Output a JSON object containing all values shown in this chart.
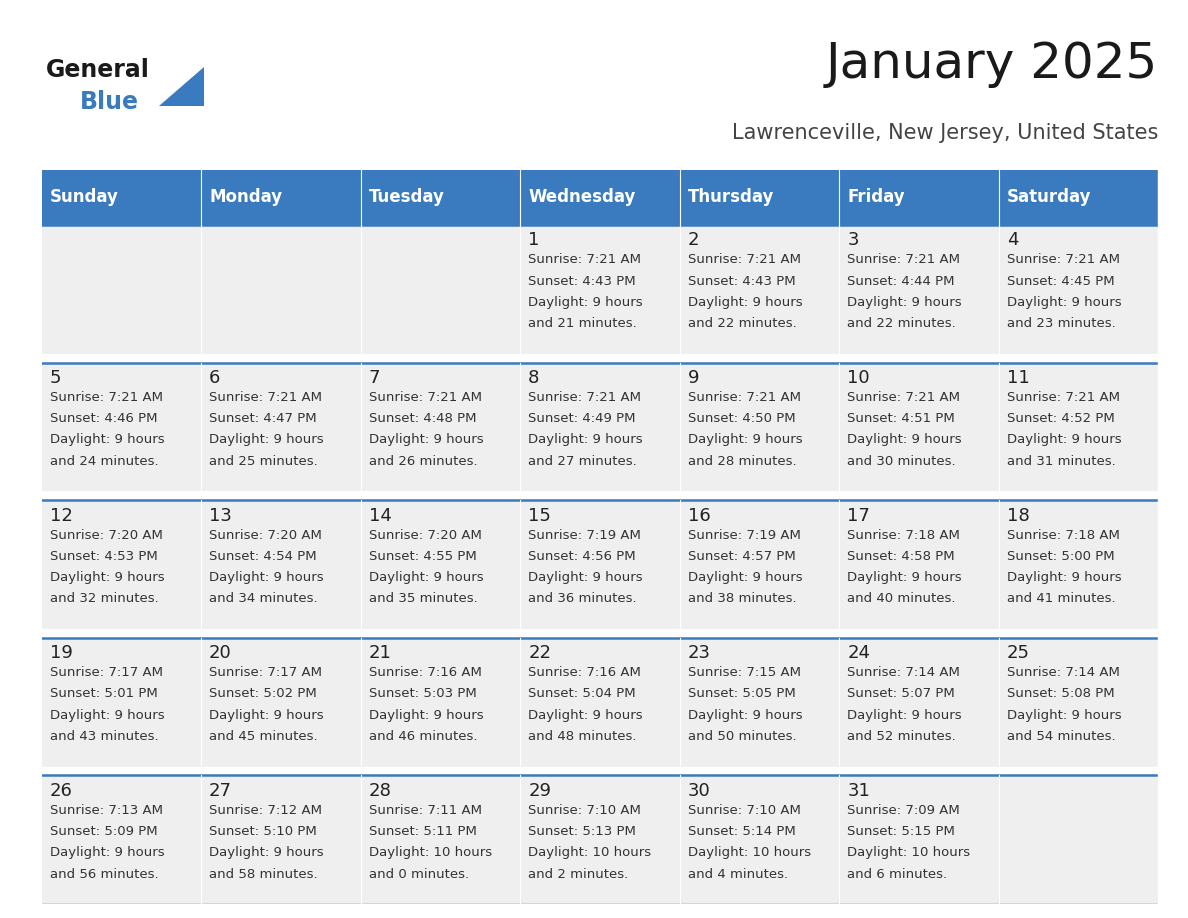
{
  "title": "January 2025",
  "subtitle": "Lawrenceville, New Jersey, United States",
  "header_color": "#3a7abf",
  "header_text_color": "#ffffff",
  "cell_bg_color": "#efefef",
  "border_color": "#3a7abf",
  "text_color": "#333333",
  "days_of_week": [
    "Sunday",
    "Monday",
    "Tuesday",
    "Wednesday",
    "Thursday",
    "Friday",
    "Saturday"
  ],
  "calendar_data": [
    [
      {
        "day": "",
        "sunrise": "",
        "sunset": "",
        "daylight_line1": "",
        "daylight_line2": ""
      },
      {
        "day": "",
        "sunrise": "",
        "sunset": "",
        "daylight_line1": "",
        "daylight_line2": ""
      },
      {
        "day": "",
        "sunrise": "",
        "sunset": "",
        "daylight_line1": "",
        "daylight_line2": ""
      },
      {
        "day": "1",
        "sunrise": "7:21 AM",
        "sunset": "4:43 PM",
        "daylight_line1": "9 hours",
        "daylight_line2": "and 21 minutes."
      },
      {
        "day": "2",
        "sunrise": "7:21 AM",
        "sunset": "4:43 PM",
        "daylight_line1": "9 hours",
        "daylight_line2": "and 22 minutes."
      },
      {
        "day": "3",
        "sunrise": "7:21 AM",
        "sunset": "4:44 PM",
        "daylight_line1": "9 hours",
        "daylight_line2": "and 22 minutes."
      },
      {
        "day": "4",
        "sunrise": "7:21 AM",
        "sunset": "4:45 PM",
        "daylight_line1": "9 hours",
        "daylight_line2": "and 23 minutes."
      }
    ],
    [
      {
        "day": "5",
        "sunrise": "7:21 AM",
        "sunset": "4:46 PM",
        "daylight_line1": "9 hours",
        "daylight_line2": "and 24 minutes."
      },
      {
        "day": "6",
        "sunrise": "7:21 AM",
        "sunset": "4:47 PM",
        "daylight_line1": "9 hours",
        "daylight_line2": "and 25 minutes."
      },
      {
        "day": "7",
        "sunrise": "7:21 AM",
        "sunset": "4:48 PM",
        "daylight_line1": "9 hours",
        "daylight_line2": "and 26 minutes."
      },
      {
        "day": "8",
        "sunrise": "7:21 AM",
        "sunset": "4:49 PM",
        "daylight_line1": "9 hours",
        "daylight_line2": "and 27 minutes."
      },
      {
        "day": "9",
        "sunrise": "7:21 AM",
        "sunset": "4:50 PM",
        "daylight_line1": "9 hours",
        "daylight_line2": "and 28 minutes."
      },
      {
        "day": "10",
        "sunrise": "7:21 AM",
        "sunset": "4:51 PM",
        "daylight_line1": "9 hours",
        "daylight_line2": "and 30 minutes."
      },
      {
        "day": "11",
        "sunrise": "7:21 AM",
        "sunset": "4:52 PM",
        "daylight_line1": "9 hours",
        "daylight_line2": "and 31 minutes."
      }
    ],
    [
      {
        "day": "12",
        "sunrise": "7:20 AM",
        "sunset": "4:53 PM",
        "daylight_line1": "9 hours",
        "daylight_line2": "and 32 minutes."
      },
      {
        "day": "13",
        "sunrise": "7:20 AM",
        "sunset": "4:54 PM",
        "daylight_line1": "9 hours",
        "daylight_line2": "and 34 minutes."
      },
      {
        "day": "14",
        "sunrise": "7:20 AM",
        "sunset": "4:55 PM",
        "daylight_line1": "9 hours",
        "daylight_line2": "and 35 minutes."
      },
      {
        "day": "15",
        "sunrise": "7:19 AM",
        "sunset": "4:56 PM",
        "daylight_line1": "9 hours",
        "daylight_line2": "and 36 minutes."
      },
      {
        "day": "16",
        "sunrise": "7:19 AM",
        "sunset": "4:57 PM",
        "daylight_line1": "9 hours",
        "daylight_line2": "and 38 minutes."
      },
      {
        "day": "17",
        "sunrise": "7:18 AM",
        "sunset": "4:58 PM",
        "daylight_line1": "9 hours",
        "daylight_line2": "and 40 minutes."
      },
      {
        "day": "18",
        "sunrise": "7:18 AM",
        "sunset": "5:00 PM",
        "daylight_line1": "9 hours",
        "daylight_line2": "and 41 minutes."
      }
    ],
    [
      {
        "day": "19",
        "sunrise": "7:17 AM",
        "sunset": "5:01 PM",
        "daylight_line1": "9 hours",
        "daylight_line2": "and 43 minutes."
      },
      {
        "day": "20",
        "sunrise": "7:17 AM",
        "sunset": "5:02 PM",
        "daylight_line1": "9 hours",
        "daylight_line2": "and 45 minutes."
      },
      {
        "day": "21",
        "sunrise": "7:16 AM",
        "sunset": "5:03 PM",
        "daylight_line1": "9 hours",
        "daylight_line2": "and 46 minutes."
      },
      {
        "day": "22",
        "sunrise": "7:16 AM",
        "sunset": "5:04 PM",
        "daylight_line1": "9 hours",
        "daylight_line2": "and 48 minutes."
      },
      {
        "day": "23",
        "sunrise": "7:15 AM",
        "sunset": "5:05 PM",
        "daylight_line1": "9 hours",
        "daylight_line2": "and 50 minutes."
      },
      {
        "day": "24",
        "sunrise": "7:14 AM",
        "sunset": "5:07 PM",
        "daylight_line1": "9 hours",
        "daylight_line2": "and 52 minutes."
      },
      {
        "day": "25",
        "sunrise": "7:14 AM",
        "sunset": "5:08 PM",
        "daylight_line1": "9 hours",
        "daylight_line2": "and 54 minutes."
      }
    ],
    [
      {
        "day": "26",
        "sunrise": "7:13 AM",
        "sunset": "5:09 PM",
        "daylight_line1": "9 hours",
        "daylight_line2": "and 56 minutes."
      },
      {
        "day": "27",
        "sunrise": "7:12 AM",
        "sunset": "5:10 PM",
        "daylight_line1": "9 hours",
        "daylight_line2": "and 58 minutes."
      },
      {
        "day": "28",
        "sunrise": "7:11 AM",
        "sunset": "5:11 PM",
        "daylight_line1": "10 hours",
        "daylight_line2": "and 0 minutes."
      },
      {
        "day": "29",
        "sunrise": "7:10 AM",
        "sunset": "5:13 PM",
        "daylight_line1": "10 hours",
        "daylight_line2": "and 2 minutes."
      },
      {
        "day": "30",
        "sunrise": "7:10 AM",
        "sunset": "5:14 PM",
        "daylight_line1": "10 hours",
        "daylight_line2": "and 4 minutes."
      },
      {
        "day": "31",
        "sunrise": "7:09 AM",
        "sunset": "5:15 PM",
        "daylight_line1": "10 hours",
        "daylight_line2": "and 6 minutes."
      },
      {
        "day": "",
        "sunrise": "",
        "sunset": "",
        "daylight_line1": "",
        "daylight_line2": ""
      }
    ]
  ],
  "logo_text_general": "General",
  "logo_text_blue": "Blue",
  "title_fontsize": 36,
  "subtitle_fontsize": 15,
  "header_fontsize": 12,
  "day_num_fontsize": 13,
  "cell_text_fontsize": 9.5
}
